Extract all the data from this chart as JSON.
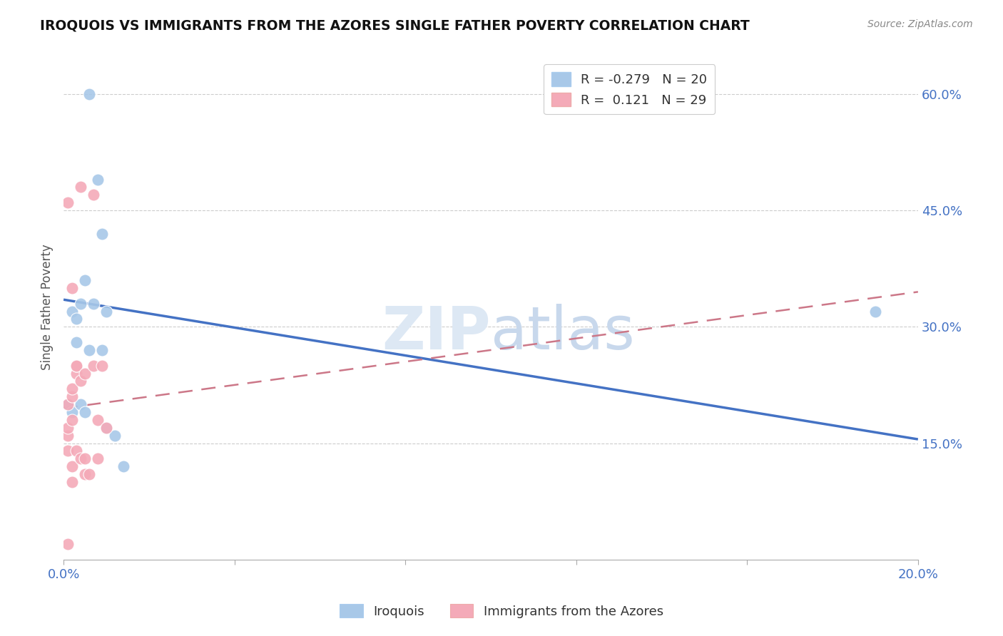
{
  "title": "IROQUOIS VS IMMIGRANTS FROM THE AZORES SINGLE FATHER POVERTY CORRELATION CHART",
  "source": "Source: ZipAtlas.com",
  "ylabel": "Single Father Poverty",
  "right_yticks": [
    0.15,
    0.3,
    0.45,
    0.6
  ],
  "right_yticklabels": [
    "15.0%",
    "30.0%",
    "45.0%",
    "60.0%"
  ],
  "legend_r1": "R = -0.279",
  "legend_n1": "N = 20",
  "legend_r2": "R =  0.121",
  "legend_n2": "N = 29",
  "iroquois_color": "#a8c8e8",
  "azores_color": "#f4aab8",
  "trendline_iroquois_color": "#4472c4",
  "trendline_azores_color": "#cc7788",
  "watermark": "ZIPatlas",
  "iroquois_x": [
    0.001,
    0.002,
    0.002,
    0.003,
    0.003,
    0.004,
    0.004,
    0.005,
    0.005,
    0.006,
    0.006,
    0.007,
    0.008,
    0.009,
    0.009,
    0.01,
    0.01,
    0.012,
    0.014,
    0.19
  ],
  "iroquois_y": [
    0.2,
    0.19,
    0.32,
    0.31,
    0.28,
    0.2,
    0.33,
    0.19,
    0.36,
    0.27,
    0.6,
    0.33,
    0.49,
    0.42,
    0.27,
    0.32,
    0.17,
    0.16,
    0.12,
    0.32
  ],
  "azores_x": [
    0.001,
    0.001,
    0.001,
    0.001,
    0.001,
    0.001,
    0.002,
    0.002,
    0.002,
    0.002,
    0.002,
    0.002,
    0.003,
    0.003,
    0.003,
    0.003,
    0.004,
    0.004,
    0.004,
    0.005,
    0.005,
    0.005,
    0.006,
    0.007,
    0.007,
    0.008,
    0.008,
    0.009,
    0.01
  ],
  "azores_y": [
    0.02,
    0.14,
    0.16,
    0.17,
    0.2,
    0.46,
    0.1,
    0.12,
    0.18,
    0.21,
    0.22,
    0.35,
    0.14,
    0.24,
    0.25,
    0.25,
    0.13,
    0.23,
    0.48,
    0.11,
    0.13,
    0.24,
    0.11,
    0.25,
    0.47,
    0.13,
    0.18,
    0.25,
    0.17
  ],
  "trendline_iroquois_x0": 0.0,
  "trendline_iroquois_y0": 0.335,
  "trendline_iroquois_x1": 0.2,
  "trendline_iroquois_y1": 0.155,
  "trendline_azores_x0": 0.0,
  "trendline_azores_y0": 0.195,
  "trendline_azores_x1": 0.2,
  "trendline_azores_y1": 0.345,
  "xlim": [
    0.0,
    0.2
  ],
  "ylim": [
    0.0,
    0.65
  ],
  "background_color": "#ffffff"
}
